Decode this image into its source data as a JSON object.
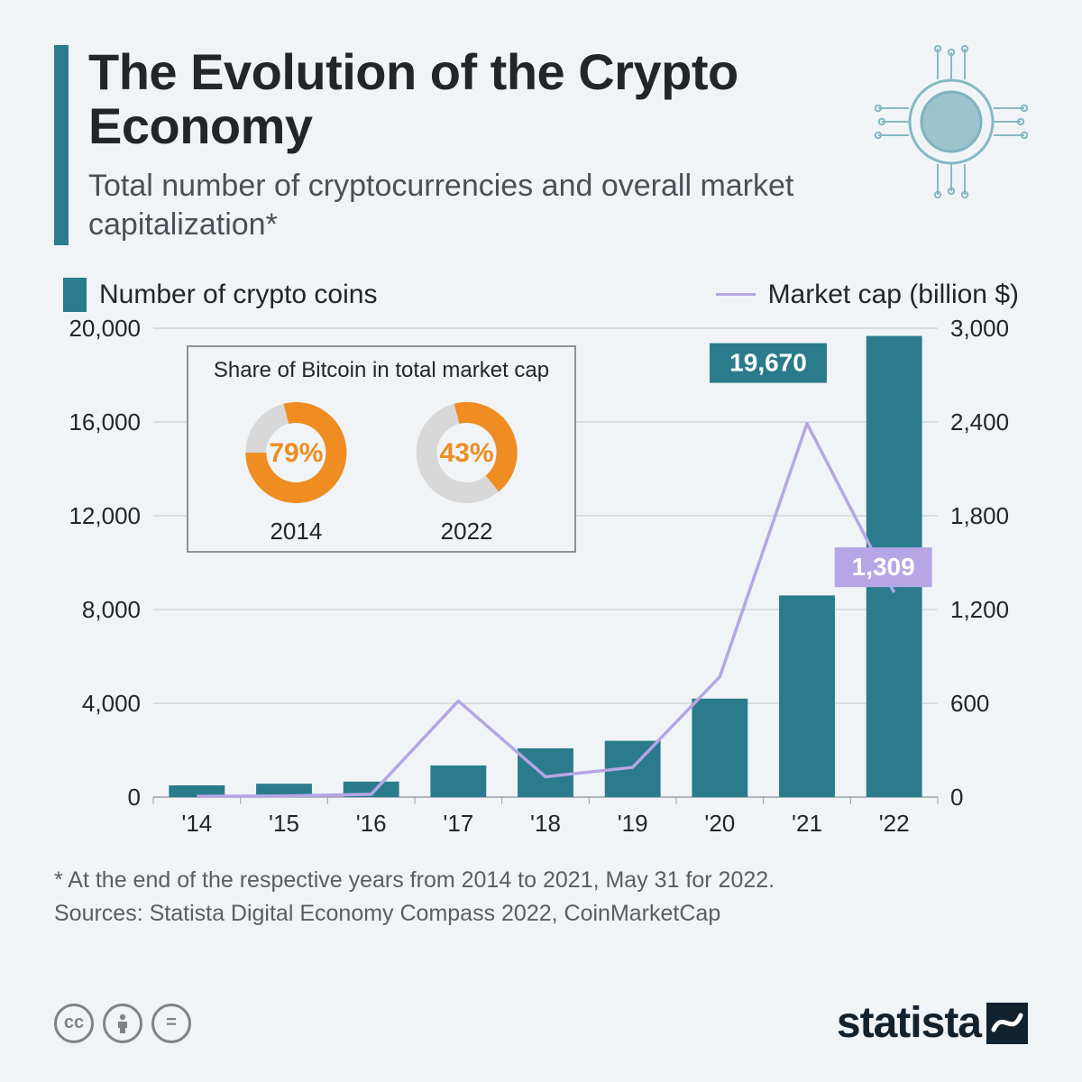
{
  "header": {
    "title": "The Evolution of the Crypto Economy",
    "subtitle": "Total number of cryptocurrencies and overall market capitalization*",
    "accent_color": "#2a7b8c"
  },
  "chip_icon": {
    "ring_outer_color": "#86b9c4",
    "ring_inner_color": "#7fb3bf",
    "center_color": "#9cc4cd",
    "trace_color": "#86b9c4"
  },
  "legend": {
    "bars": {
      "label": "Number of crypto coins",
      "color": "#2a7b8c"
    },
    "line": {
      "label": "Market cap (billion $)",
      "color": "#b6a6e5"
    }
  },
  "chart": {
    "type": "bar+line",
    "background_color": "#f0f4f7",
    "grid_color": "#9aa1a7",
    "axis_font_size": 26,
    "left_axis": {
      "min": 0,
      "max": 20000,
      "step": 4000,
      "labels": [
        "0",
        "4,000",
        "8,000",
        "12,000",
        "16,000",
        "20,000"
      ]
    },
    "right_axis": {
      "min": 0,
      "max": 3000,
      "step": 600,
      "labels": [
        "0",
        "600",
        "1,200",
        "1,800",
        "2,400",
        "3,000"
      ]
    },
    "x_labels": [
      "'14",
      "'15",
      "'16",
      "'17",
      "'18",
      "'19",
      "'20",
      "'21",
      "'22"
    ],
    "bars": {
      "color": "#2a7b8c",
      "values": [
        500,
        570,
        660,
        1350,
        2080,
        2400,
        4200,
        8600,
        19670
      ],
      "width_ratio": 0.64
    },
    "line": {
      "color": "#b6a6e5",
      "stroke_width": 3.5,
      "values": [
        5,
        7,
        18,
        615,
        130,
        190,
        770,
        2390,
        1309
      ]
    },
    "callout_bar": {
      "text": "19,670",
      "bg": "#2a7b8c",
      "fg": "#ffffff"
    },
    "callout_line": {
      "text": "1,309",
      "bg": "#b6a6e5",
      "fg": "#ffffff"
    },
    "inset": {
      "title": "Share of Bitcoin in total market cap",
      "border_color": "#6d7378",
      "donut_fill": "#ef8d22",
      "donut_track": "#d8d8d8",
      "items": [
        {
          "year": "2014",
          "pct": 79,
          "label": "79%"
        },
        {
          "year": "2022",
          "pct": 43,
          "label": "43%"
        }
      ],
      "title_fontsize": 24,
      "pct_fontsize": 30,
      "year_fontsize": 26
    }
  },
  "footnote": {
    "line1": "* At the end of the respective years from 2014 to 2021, May 31 for 2022.",
    "line2": "Sources: Statista Digital Economy Compass 2022, CoinMarketCap"
  },
  "footer": {
    "brand": "statista",
    "brand_color": "#12212e"
  }
}
